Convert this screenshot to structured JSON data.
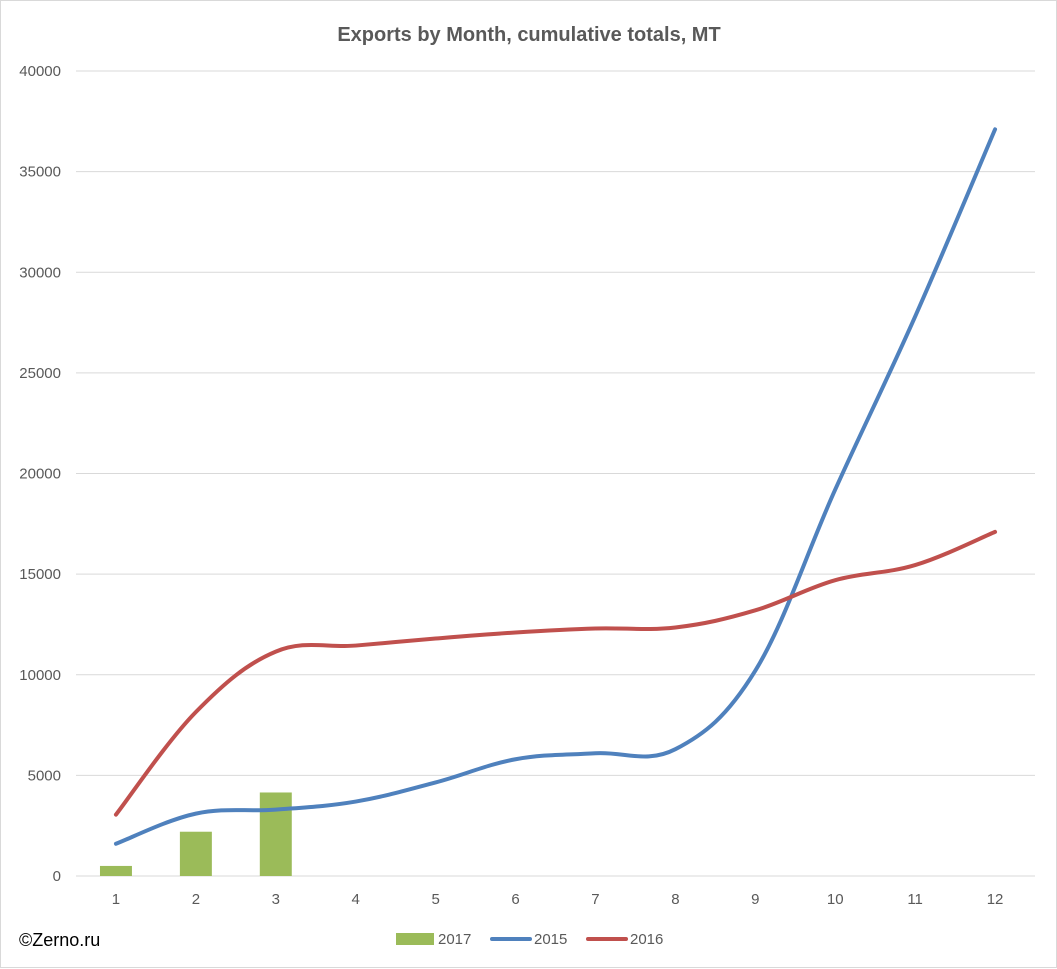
{
  "chart_data": {
    "type": "bar",
    "title": "Exports by Month, cumulative totals, MT",
    "xlabel": "",
    "ylabel": "",
    "categories": [
      "1",
      "2",
      "3",
      "4",
      "5",
      "6",
      "7",
      "8",
      "9",
      "10",
      "11",
      "12"
    ],
    "ylim": [
      0,
      40000
    ],
    "yticks": [
      0,
      5000,
      10000,
      15000,
      20000,
      25000,
      30000,
      35000,
      40000
    ],
    "grid": true,
    "legend_position": "bottom",
    "series": [
      {
        "name": "2017",
        "type": "bar",
        "color": "#9bbb59",
        "values": [
          500,
          2200,
          4150,
          null,
          null,
          null,
          null,
          null,
          null,
          null,
          null,
          null
        ]
      },
      {
        "name": "2015",
        "type": "line",
        "color": "#4f81bd",
        "values": [
          1600,
          3100,
          3300,
          3700,
          4650,
          5800,
          6100,
          6300,
          10200,
          19200,
          27800,
          37100
        ]
      },
      {
        "name": "2016",
        "type": "line",
        "color": "#c0504d",
        "values": [
          3050,
          8150,
          11150,
          11450,
          11800,
          12100,
          12300,
          12350,
          13200,
          14700,
          15450,
          17100
        ]
      }
    ]
  },
  "credit": "©Zerno.ru"
}
